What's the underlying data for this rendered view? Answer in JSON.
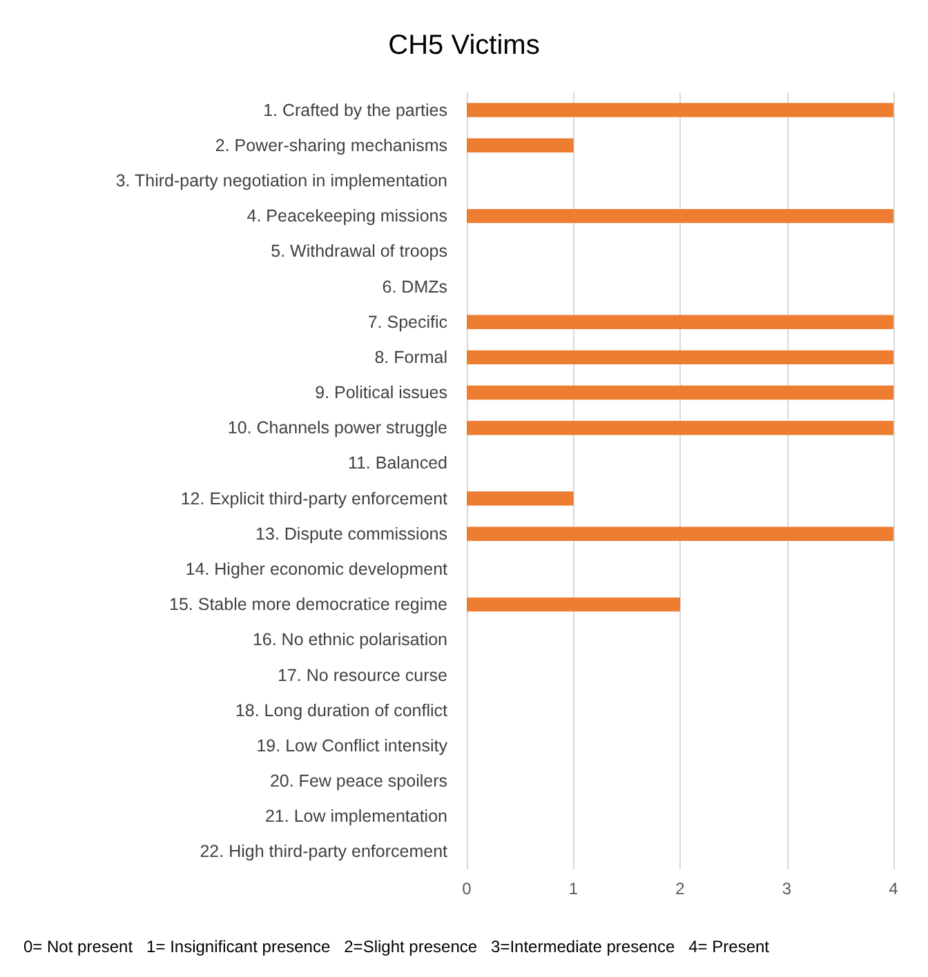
{
  "chart_data": {
    "type": "bar",
    "title": "CH5 Victims",
    "orientation": "horizontal",
    "categories": [
      "1. Crafted by the parties",
      "2. Power-sharing mechanisms",
      "3. Third-party negotiation in implementation",
      "4. Peacekeeping missions",
      "5. Withdrawal of troops",
      "6. DMZs",
      "7. Specific",
      "8. Formal",
      "9. Political issues",
      "10. Channels power struggle",
      "11. Balanced",
      "12. Explicit third-party enforcement",
      "13. Dispute commissions",
      "14. Higher economic development",
      "15. Stable more democratice regime",
      "16. No ethnic polarisation",
      "17. No resource curse",
      "18. Long duration of conflict",
      "19. Low Conflict intensity",
      "20. Few peace spoilers",
      "21. Low implementation",
      "22. High third-party enforcement"
    ],
    "values": [
      4,
      1,
      0,
      4,
      0,
      0,
      4,
      4,
      4,
      4,
      0,
      1,
      4,
      0,
      2,
      0,
      0,
      0,
      0,
      0,
      0,
      0
    ],
    "color": "#ed7d31",
    "xlim": [
      0,
      4
    ],
    "xticks": [
      0,
      1,
      2,
      3,
      4
    ],
    "grid": "x",
    "annotations": [
      "0= Not present   1= Insignificant presence   2=Slight presence   3=Intermediate presence   4= Present"
    ]
  }
}
